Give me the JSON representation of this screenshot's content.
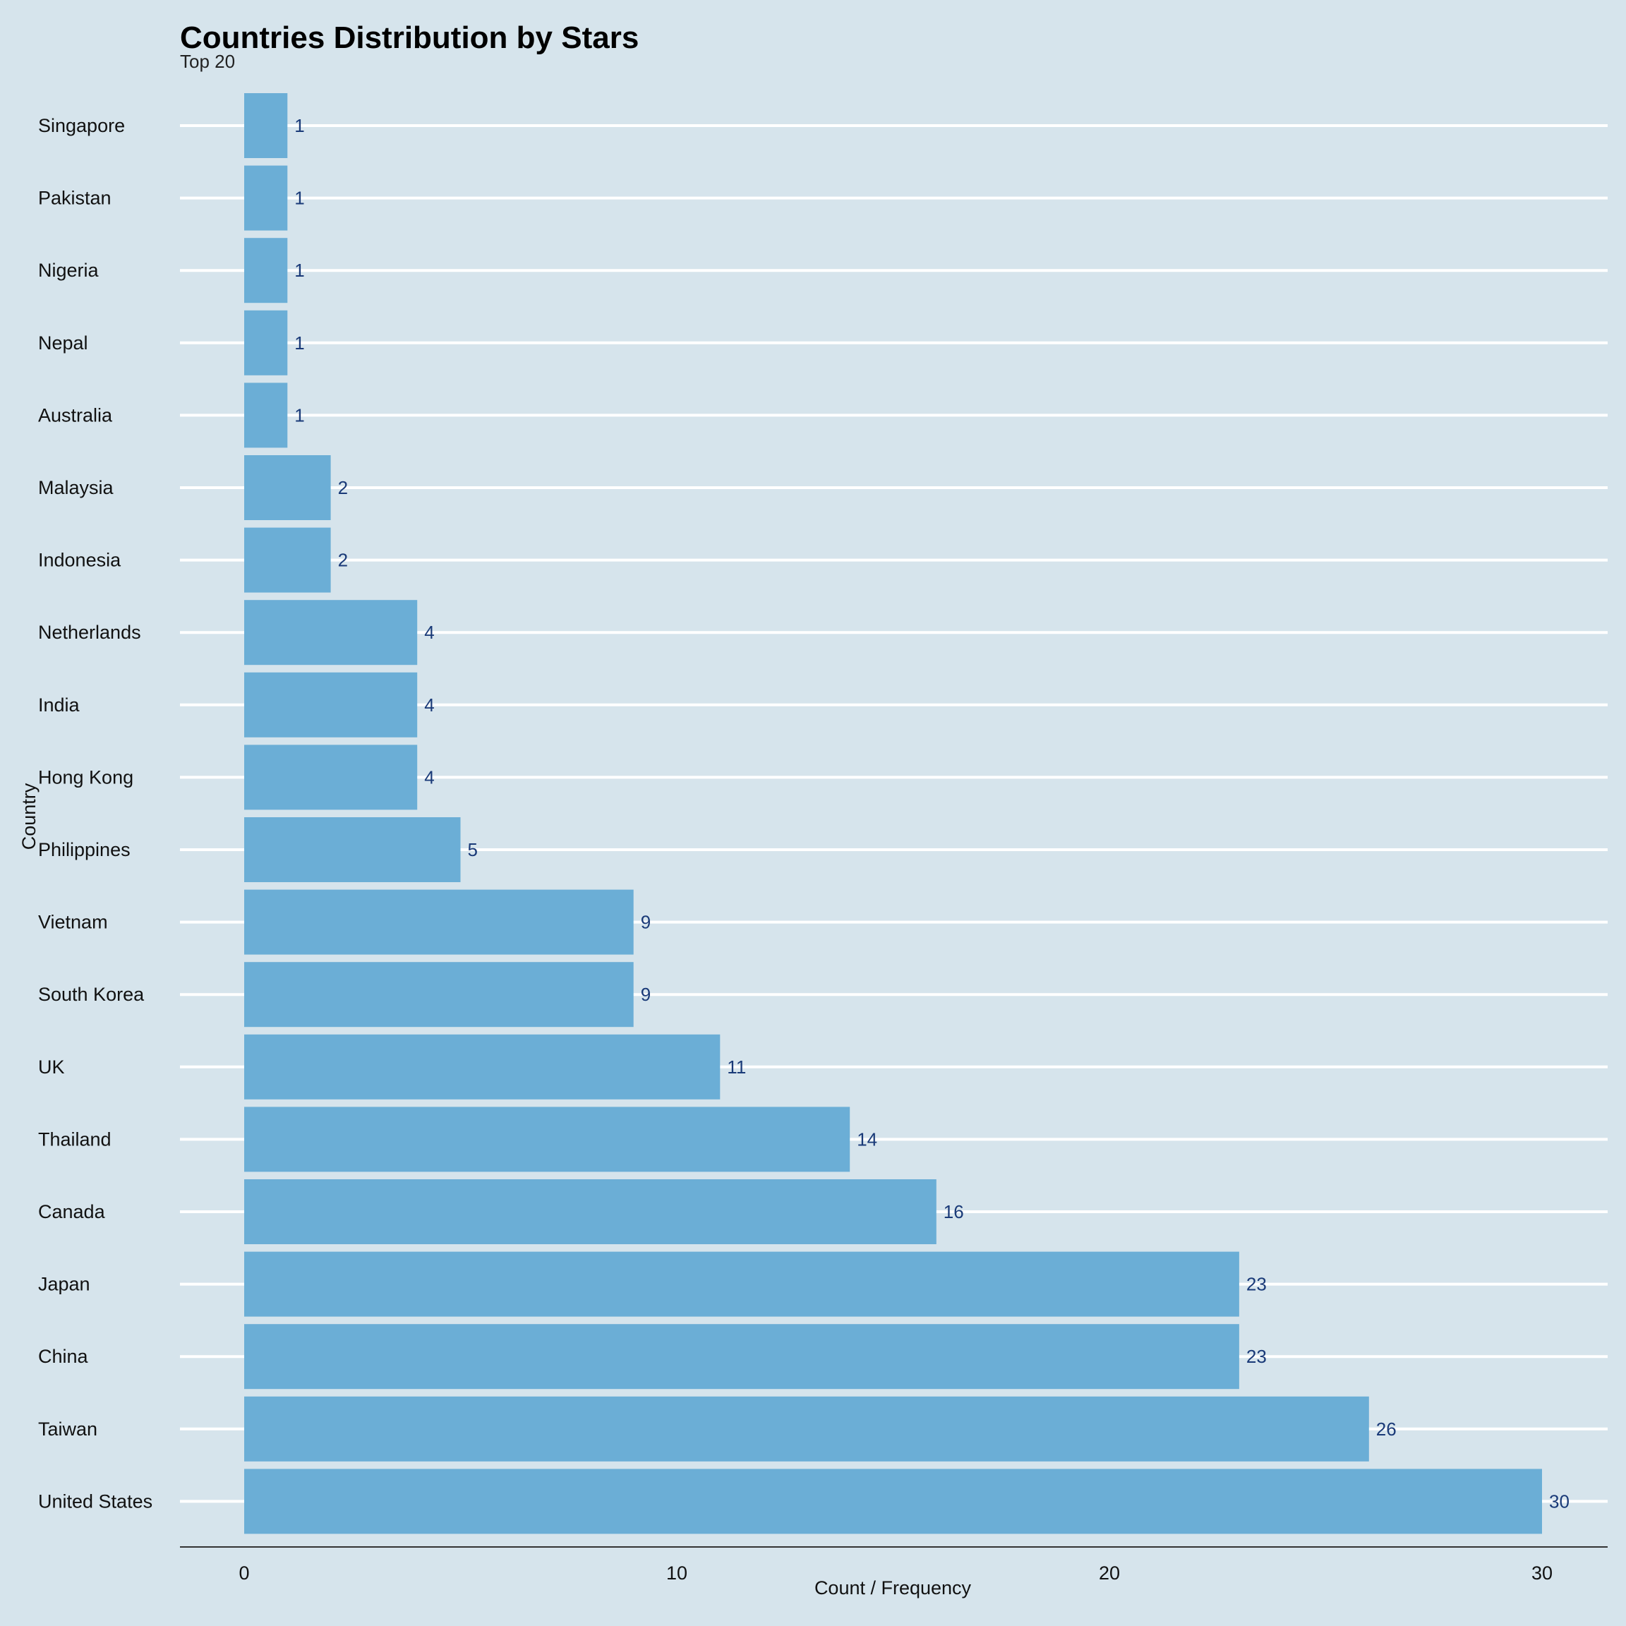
{
  "chart_data": {
    "type": "bar",
    "orientation": "horizontal",
    "title": "Countries Distribution by Stars",
    "subtitle": "Top 20",
    "xlabel": "Count / Frequency",
    "ylabel": "Country",
    "xlim": [
      0,
      30
    ],
    "x_ticks": [
      0,
      10,
      20,
      30
    ],
    "grid": "horizontal major lines (white)",
    "bar_color": "#6baed6",
    "label_color": "#1a3a78",
    "background_color": "#d6e4ec",
    "categories": [
      "Singapore",
      "Pakistan",
      "Nigeria",
      "Nepal",
      "Australia",
      "Malaysia",
      "Indonesia",
      "Netherlands",
      "India",
      "Hong Kong",
      "Philippines",
      "Vietnam",
      "South Korea",
      "UK",
      "Thailand",
      "Canada",
      "Japan",
      "China",
      "Taiwan",
      "United States"
    ],
    "values": [
      1,
      1,
      1,
      1,
      1,
      2,
      2,
      4,
      4,
      4,
      5,
      9,
      9,
      11,
      14,
      16,
      23,
      23,
      26,
      30
    ]
  }
}
